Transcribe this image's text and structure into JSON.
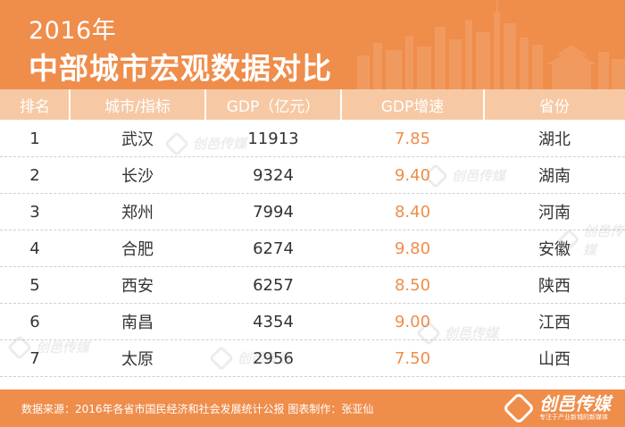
{
  "header": {
    "year": "2016年",
    "title": "中部城市宏观数据对比"
  },
  "table": {
    "columns": [
      "排名",
      "城市/指标",
      "GDP（亿元）",
      "GDP增速",
      "省份"
    ],
    "rows": [
      {
        "rank": "1",
        "city": "武汉",
        "gdp": "11913",
        "growth": "7.85",
        "province": "湖北"
      },
      {
        "rank": "2",
        "city": "长沙",
        "gdp": "9324",
        "growth": "9.40",
        "province": "湖南"
      },
      {
        "rank": "3",
        "city": "郑州",
        "gdp": "7994",
        "growth": "8.40",
        "province": "河南"
      },
      {
        "rank": "4",
        "city": "合肥",
        "gdp": "6274",
        "growth": "9.80",
        "province": "安徽"
      },
      {
        "rank": "5",
        "city": "西安",
        "gdp": "6257",
        "growth": "8.50",
        "province": "陕西"
      },
      {
        "rank": "6",
        "city": "南昌",
        "gdp": "4354",
        "growth": "9.00",
        "province": "江西"
      },
      {
        "rank": "7",
        "city": "太原",
        "gdp": "2956",
        "growth": "7.50",
        "province": "山西"
      }
    ]
  },
  "watermark": "创邑传媒",
  "footer": {
    "source": "数据来源：2016年各省市国民经济和社会发展统计公报  图表制作：张亚仙",
    "logo_name": "创邑传媒",
    "logo_slogan": "专注于产业新城的新媒体"
  },
  "colors": {
    "accent": "#ef8d4b",
    "header_row": "#f6c9a4"
  },
  "icons": [
    "city-skyline-icon",
    "cube-logo-icon"
  ]
}
